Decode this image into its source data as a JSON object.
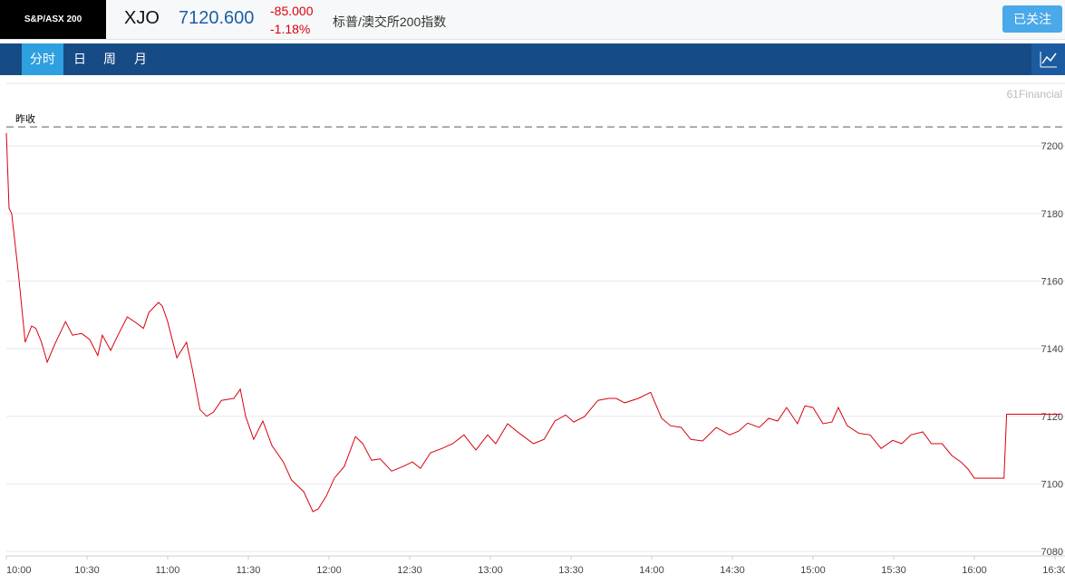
{
  "header": {
    "logo": "S&P/ASX 200",
    "symbol": "XJO",
    "price": "7120.600",
    "change": "-85.000",
    "change_pct": "-1.18%",
    "name": "标普/澳交所200指数",
    "follow_button": "已关注"
  },
  "tabs": [
    "分时",
    "日",
    "周",
    "月"
  ],
  "chart_data": {
    "type": "line",
    "color": "#d9000d",
    "watermark": "61Financial",
    "prev_close": {
      "value": 7205.6,
      "label": "昨收"
    },
    "x": [
      0,
      1,
      2,
      4.4,
      7,
      9.4,
      11,
      13,
      15.2,
      18,
      22,
      24.6,
      28,
      31,
      34,
      35.7,
      38.8,
      41.5,
      45,
      48,
      51,
      53,
      56.6,
      58,
      60,
      63.4,
      67,
      69,
      72,
      74.5,
      77,
      80,
      84.6,
      87,
      89,
      92,
      95.4,
      98.8,
      103,
      106,
      110.6,
      114,
      116,
      119,
      122,
      125.7,
      129.8,
      132.5,
      135.8,
      139,
      143.3,
      147.6,
      151,
      154,
      157.7,
      162,
      166,
      170.2,
      174.6,
      179,
      182,
      186.4,
      190.4,
      196,
      200,
      204,
      208,
      211,
      215,
      220,
      224,
      226.8,
      230,
      235,
      239.6,
      243.7,
      247,
      251,
      254.5,
      258.9,
      264,
      269,
      272.3,
      275.7,
      280,
      283.5,
      286.8,
      290.2,
      294.2,
      297,
      300,
      303.7,
      307,
      309.4,
      312.7,
      317,
      321.2,
      325.3,
      329.6,
      333,
      336.4,
      340.8,
      344,
      348,
      351.6,
      355,
      357.6,
      360,
      371,
      372,
      392
    ],
    "values": [
      7203.8,
      7181.5,
      7180,
      7162.8,
      7141.9,
      7146.7,
      7146,
      7142,
      7136,
      7141.3,
      7148,
      7144,
      7144.5,
      7142.7,
      7138,
      7144,
      7139.5,
      7144,
      7149.4,
      7147.8,
      7146,
      7150.7,
      7153.7,
      7152.6,
      7148,
      7137.3,
      7141.9,
      7134.6,
      7122,
      7120,
      7121.2,
      7124.7,
      7125.3,
      7128,
      7120,
      7113.2,
      7118.6,
      7111.3,
      7106.5,
      7101.2,
      7097.7,
      7091.8,
      7092.6,
      7096.4,
      7101.7,
      7105.2,
      7114,
      7112,
      7107,
      7107.4,
      7103.8,
      7105.2,
      7106.5,
      7104.6,
      7109.2,
      7110.5,
      7111.9,
      7114.5,
      7110,
      7114.5,
      7111.9,
      7117.8,
      7115.2,
      7111.9,
      7113.2,
      7118.6,
      7120.4,
      7118.3,
      7119.9,
      7124.7,
      7125.3,
      7125.3,
      7124,
      7125.3,
      7127.1,
      7119.4,
      7117.2,
      7116.7,
      7113.2,
      7112.7,
      7116.7,
      7114.5,
      7115.6,
      7118,
      7116.7,
      7119.4,
      7118.6,
      7122.6,
      7117.8,
      7123.1,
      7122.6,
      7117.8,
      7118.3,
      7122.6,
      7117.2,
      7115,
      7114.5,
      7110.5,
      7112.9,
      7111.9,
      7114.5,
      7115.4,
      7111.9,
      7111.9,
      7108.4,
      7106.5,
      7104.4,
      7101.7,
      7101.7,
      7120.6,
      7120.6
    ],
    "xlim": [
      0,
      393.7
    ],
    "ylim": [
      7078.7,
      7218.5
    ],
    "xticks": [
      {
        "value": 0,
        "label": "10:00"
      },
      {
        "value": 30,
        "label": "10:30"
      },
      {
        "value": 60,
        "label": "11:00"
      },
      {
        "value": 90,
        "label": "11:30"
      },
      {
        "value": 120,
        "label": "12:00"
      },
      {
        "value": 150,
        "label": "12:30"
      },
      {
        "value": 180,
        "label": "13:00"
      },
      {
        "value": 210,
        "label": "13:30"
      },
      {
        "value": 240,
        "label": "14:00"
      },
      {
        "value": 270,
        "label": "14:30"
      },
      {
        "value": 300,
        "label": "15:00"
      },
      {
        "value": 330,
        "label": "15:30"
      },
      {
        "value": 360,
        "label": "16:00"
      },
      {
        "value": 390,
        "label": "16:30"
      }
    ],
    "yticks": [
      7080,
      7100,
      7120,
      7140,
      7160,
      7180,
      7200
    ],
    "grid": true
  }
}
